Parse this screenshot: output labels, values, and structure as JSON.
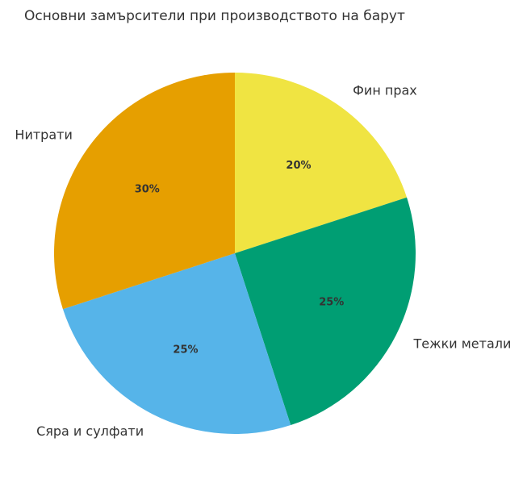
{
  "chart_data": {
    "type": "pie",
    "title": "Основни замърсители при производството на барут",
    "categories": [
      "Фин прах",
      "Тежки метали",
      "Сяра и сулфати",
      "Нитрати"
    ],
    "values": [
      20,
      25,
      25,
      30
    ],
    "value_labels": [
      "20%",
      "25%",
      "25%",
      "30%"
    ],
    "colors": [
      "#f0e442",
      "#009e73",
      "#56b4e9",
      "#e69f00"
    ]
  }
}
